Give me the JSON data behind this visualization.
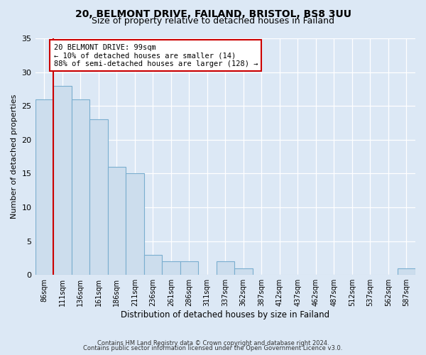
{
  "title": "20, BELMONT DRIVE, FAILAND, BRISTOL, BS8 3UU",
  "subtitle": "Size of property relative to detached houses in Failand",
  "xlabel": "Distribution of detached houses by size in Failand",
  "ylabel": "Number of detached properties",
  "bin_labels": [
    "86sqm",
    "111sqm",
    "136sqm",
    "161sqm",
    "186sqm",
    "211sqm",
    "236sqm",
    "261sqm",
    "286sqm",
    "311sqm",
    "337sqm",
    "362sqm",
    "387sqm",
    "412sqm",
    "437sqm",
    "462sqm",
    "487sqm",
    "512sqm",
    "537sqm",
    "562sqm",
    "587sqm"
  ],
  "bin_values": [
    26,
    28,
    26,
    23,
    16,
    15,
    3,
    2,
    2,
    0,
    2,
    1,
    0,
    0,
    0,
    0,
    0,
    0,
    0,
    0,
    1
  ],
  "bar_color": "#ccdded",
  "bar_edge_color": "#7aaecf",
  "marker_line_color": "#cc0000",
  "annotation_text": "20 BELMONT DRIVE: 99sqm\n← 10% of detached houses are smaller (14)\n88% of semi-detached houses are larger (128) →",
  "annotation_box_color": "#ffffff",
  "annotation_box_edge_color": "#cc0000",
  "ylim": [
    0,
    35
  ],
  "yticks": [
    0,
    5,
    10,
    15,
    20,
    25,
    30,
    35
  ],
  "footer_line1": "Contains HM Land Registry data © Crown copyright and database right 2024.",
  "footer_line2": "Contains public sector information licensed under the Open Government Licence v3.0.",
  "bg_color": "#dce8f5",
  "plot_bg_color": "#dce8f5",
  "title_fontsize": 10,
  "subtitle_fontsize": 9
}
